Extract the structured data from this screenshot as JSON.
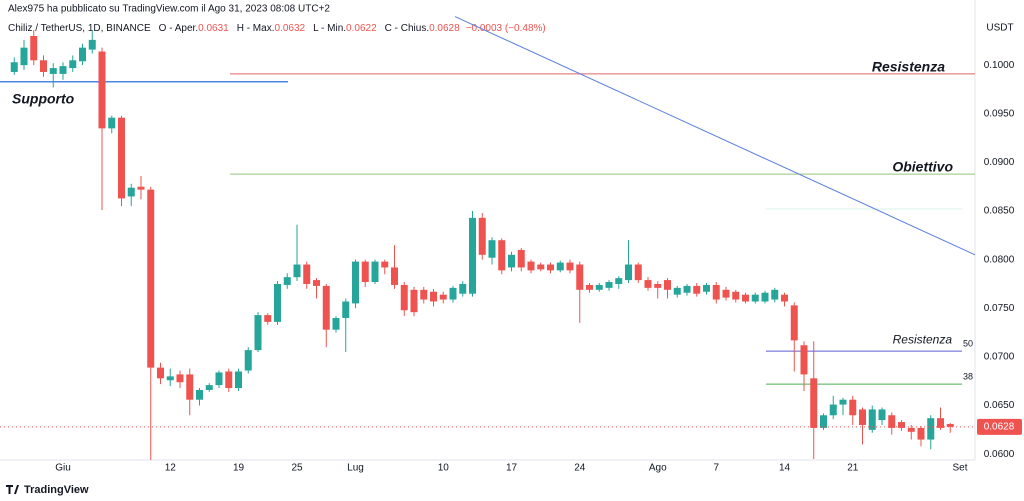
{
  "chart_data": {
    "type": "candlestick",
    "published": "Alex975 ha pubblicato su TradingView.com il Ago 31, 2023 08:08 UTC+2",
    "symbol": "Chiliz / TetherUS, 1D, BINANCE",
    "ohlc": [
      {
        "label": "O - Aper.",
        "value": 0.0631
      },
      {
        "label": "H - Max.",
        "value": 0.0632
      },
      {
        "label": "L - Min.",
        "value": 0.0622
      },
      {
        "label": "C - Chius.",
        "value": 0.0628
      }
    ],
    "change": "−0.0003 (−0.48%)",
    "currency": "USDT",
    "brand": "TradingView",
    "last_price": 0.0628,
    "up_color": "#26a69a",
    "down_color": "#ef5350",
    "ylim": [
      0.0594,
      0.1067
    ],
    "yticks": [
      {
        "value": 0.06,
        "label": "0.0600"
      },
      {
        "value": 0.065,
        "label": "0.0650"
      },
      {
        "value": 0.07,
        "label": "0.0700"
      },
      {
        "value": 0.075,
        "label": "0.0750"
      },
      {
        "value": 0.08,
        "label": "0.0800"
      },
      {
        "value": 0.085,
        "label": "0.0850"
      },
      {
        "value": 0.09,
        "label": "0.0900"
      },
      {
        "value": 0.095,
        "label": "0.0950"
      },
      {
        "value": 0.1,
        "label": "0.1000"
      }
    ],
    "grid": false,
    "categories": [
      null,
      null,
      null,
      null,
      null,
      "Giu",
      null,
      null,
      null,
      null,
      null,
      null,
      null,
      null,
      null,
      null,
      "12",
      null,
      null,
      null,
      null,
      null,
      null,
      "19",
      null,
      null,
      null,
      null,
      null,
      "25",
      null,
      null,
      null,
      null,
      null,
      "Lug",
      null,
      null,
      null,
      null,
      null,
      null,
      null,
      null,
      "10",
      null,
      null,
      null,
      null,
      null,
      null,
      "17",
      null,
      null,
      null,
      null,
      null,
      null,
      "24",
      null,
      null,
      null,
      null,
      null,
      null,
      null,
      "Ago",
      null,
      null,
      null,
      null,
      null,
      "7",
      null,
      null,
      null,
      null,
      null,
      null,
      "14",
      null,
      null,
      null,
      null,
      null,
      null,
      "21",
      null,
      null,
      null,
      null,
      null,
      null,
      null,
      null,
      null,
      null,
      "Set"
    ],
    "open": [
      0.0993,
      0.1,
      0.103,
      0.1005,
      0.0991,
      0.0991,
      0.0997,
      0.1004,
      0.1016,
      0.1014,
      0.0935,
      0.0946,
      0.0865,
      0.0875,
      0.0872,
      0.0689,
      0.0676,
      0.0682,
      0.0682,
      0.0656,
      0.0666,
      0.0671,
      0.0685,
      0.0668,
      0.0686,
      0.0707,
      0.0743,
      0.0736,
      0.0774,
      0.0782,
      0.0795,
      0.0779,
      0.0773,
      0.0728,
      0.074,
      0.0755,
      0.0798,
      0.0777,
      0.0798,
      0.0792,
      0.0774,
      0.0769,
      0.0769,
      0.0767,
      0.0764,
      0.0759,
      0.0765,
      0.0765,
      0.0843,
      0.0802,
      0.082,
      0.0792,
      0.081,
      0.0798,
      0.0795,
      0.0795,
      0.0789,
      0.0797,
      0.0795,
      0.0774,
      0.0769,
      0.0771,
      0.0775,
      0.0779,
      0.0795,
      0.0779,
      0.0775,
      0.0779,
      0.0764,
      0.0766,
      0.0773,
      0.0767,
      0.0774,
      0.0769,
      0.0767,
      0.0764,
      0.0757,
      0.0757,
      0.0759,
      0.0764,
      0.0753,
      0.0712,
      0.0678,
      0.0627,
      0.064,
      0.0651,
      0.0656,
      0.0646,
      0.0625,
      0.0635,
      0.064,
      0.0633,
      0.0627,
      0.0627,
      0.0615,
      0.0637,
      0.0631,
      null
    ],
    "high": [
      0.1008,
      0.1026,
      0.1036,
      0.101,
      0.1002,
      0.1003,
      0.101,
      0.1022,
      0.1036,
      0.1018,
      0.0948,
      0.0948,
      0.0878,
      0.0886,
      0.0875,
      0.0694,
      0.0688,
      0.0686,
      0.0688,
      0.0668,
      0.0673,
      0.0686,
      0.0688,
      0.0688,
      0.071,
      0.0746,
      0.0745,
      0.0778,
      0.0786,
      0.0836,
      0.0798,
      0.0781,
      0.0775,
      0.0742,
      0.076,
      0.08,
      0.08,
      0.08,
      0.08,
      0.0815,
      0.0777,
      0.0772,
      0.0772,
      0.077,
      0.0767,
      0.0773,
      0.0778,
      0.085,
      0.0848,
      0.0823,
      0.0822,
      0.0808,
      0.0812,
      0.08,
      0.0797,
      0.0797,
      0.0799,
      0.08,
      0.0798,
      0.0776,
      0.0776,
      0.0779,
      0.0783,
      0.082,
      0.0797,
      0.0782,
      0.0778,
      0.0781,
      0.0773,
      0.0775,
      0.0776,
      0.0776,
      0.0777,
      0.0772,
      0.0769,
      0.0766,
      0.0766,
      0.0768,
      0.0771,
      0.0766,
      0.0756,
      0.0716,
      0.0716,
      0.0642,
      0.066,
      0.0658,
      0.066,
      0.0648,
      0.065,
      0.0648,
      0.0643,
      0.0635,
      0.063,
      0.0629,
      0.064,
      0.0648,
      0.0632,
      null
    ],
    "low": [
      0.099,
      0.0995,
      0.1,
      0.0988,
      0.0977,
      0.0985,
      0.0993,
      0.1,
      0.1012,
      0.0851,
      0.093,
      0.0855,
      0.0855,
      0.0862,
      0.0594,
      0.0672,
      0.067,
      0.0668,
      0.064,
      0.065,
      0.0664,
      0.0668,
      0.0664,
      0.0665,
      0.0683,
      0.0705,
      0.0733,
      0.0733,
      0.077,
      0.0778,
      0.077,
      0.076,
      0.071,
      0.0725,
      0.0705,
      0.075,
      0.0772,
      0.0775,
      0.0785,
      0.077,
      0.0742,
      0.0742,
      0.0755,
      0.0752,
      0.0755,
      0.0756,
      0.0762,
      0.0762,
      0.08,
      0.0795,
      0.0785,
      0.0788,
      0.0788,
      0.0786,
      0.0788,
      0.0786,
      0.0787,
      0.0786,
      0.0735,
      0.0766,
      0.0767,
      0.0768,
      0.077,
      0.0776,
      0.0776,
      0.0768,
      0.076,
      0.076,
      0.0761,
      0.0763,
      0.0762,
      0.0764,
      0.0755,
      0.0758,
      0.0756,
      0.0755,
      0.0755,
      0.0755,
      0.0756,
      0.0752,
      0.0685,
      0.0665,
      0.0595,
      0.0625,
      0.0636,
      0.064,
      0.063,
      0.061,
      0.0622,
      0.063,
      0.062,
      0.0624,
      0.0615,
      0.0608,
      0.0605,
      0.0625,
      0.0622,
      null
    ],
    "close": [
      0.1003,
      0.1018,
      0.1005,
      0.0993,
      0.0997,
      0.0999,
      0.1005,
      0.1018,
      0.1026,
      0.0935,
      0.0946,
      0.0863,
      0.0874,
      0.0872,
      0.0689,
      0.0678,
      0.068,
      0.0674,
      0.0656,
      0.0666,
      0.0671,
      0.0684,
      0.0668,
      0.0685,
      0.0707,
      0.0743,
      0.0736,
      0.0775,
      0.0782,
      0.0795,
      0.0775,
      0.0773,
      0.0728,
      0.074,
      0.0757,
      0.0798,
      0.0777,
      0.0798,
      0.0792,
      0.0774,
      0.0748,
      0.0746,
      0.0759,
      0.0757,
      0.0759,
      0.0771,
      0.0775,
      0.0843,
      0.0805,
      0.082,
      0.0789,
      0.0805,
      0.0792,
      0.0789,
      0.079,
      0.0789,
      0.0797,
      0.0789,
      0.0769,
      0.0769,
      0.0774,
      0.0777,
      0.0781,
      0.0795,
      0.0779,
      0.0771,
      0.0771,
      0.0769,
      0.0771,
      0.0773,
      0.0765,
      0.0774,
      0.0759,
      0.0761,
      0.0759,
      0.0757,
      0.0764,
      0.0766,
      0.0769,
      0.0757,
      0.0717,
      0.0682,
      0.0627,
      0.064,
      0.0651,
      0.0656,
      0.064,
      0.063,
      0.0646,
      0.0646,
      0.0627,
      0.0627,
      0.0623,
      0.0615,
      0.0637,
      0.0627,
      0.0628,
      null
    ],
    "levels": [
      {
        "label": "Supporto",
        "value": 0.0983,
        "line_color": "#4a86e8",
        "text_color": "#5b9bef"
      },
      {
        "label": "Resistenza",
        "value": 0.0991,
        "line_color": "#e06666",
        "text_color": "#c62833"
      },
      {
        "label": "Obiettivo",
        "value": 0.0888,
        "line_color": "#93c47d",
        "text_color": "#4dd0e1"
      }
    ],
    "fib_levels": [
      {
        "label": "50",
        "value": 0.0706,
        "color": "#5c5cd6"
      },
      {
        "label": "38",
        "value": 0.0672,
        "color": "#4caf50"
      }
    ],
    "fib_note": {
      "label": "Resistenza",
      "color": "#e0607e"
    },
    "trend_line": {
      "values": [
        0.105,
        0.0805
      ],
      "color": "#5b7fdc"
    }
  }
}
